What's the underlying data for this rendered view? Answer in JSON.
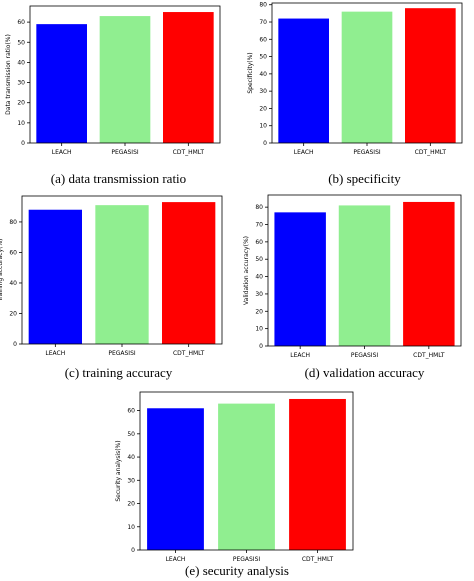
{
  "chart_data": [
    {
      "type": "bar",
      "caption": "(a) data transmission ratio",
      "ylabel": "Data transmission ratio(%)",
      "xlabel": "",
      "categories": [
        "LEACH",
        "PEGASISI",
        "CDT_HMLT"
      ],
      "values": [
        59,
        63,
        65
      ],
      "colors": [
        "#0000ff",
        "#90ee90",
        "#ff0000"
      ],
      "ylim": [
        0,
        68
      ],
      "yticks": [
        0,
        10,
        20,
        30,
        40,
        50,
        60
      ]
    },
    {
      "type": "bar",
      "caption": "(b) specificity",
      "ylabel": "Specificity(%)",
      "xlabel": "",
      "categories": [
        "LEACH",
        "PEGASISI",
        "CDT_HMLT"
      ],
      "values": [
        72,
        76,
        78
      ],
      "colors": [
        "#0000ff",
        "#90ee90",
        "#ff0000"
      ],
      "ylim": [
        0,
        81
      ],
      "yticks": [
        0,
        10,
        20,
        30,
        40,
        50,
        60,
        70,
        80
      ]
    },
    {
      "type": "bar",
      "caption": "(c) training accuracy",
      "ylabel": "Training accuracy(%)",
      "xlabel": "",
      "categories": [
        "LEACH",
        "PEGASISI",
        "CDT_HMLT"
      ],
      "values": [
        88,
        91,
        93
      ],
      "colors": [
        "#0000ff",
        "#90ee90",
        "#ff0000"
      ],
      "ylim": [
        0,
        97
      ],
      "yticks": [
        0,
        20,
        40,
        60,
        80
      ]
    },
    {
      "type": "bar",
      "caption": "(d) validation accuracy",
      "ylabel": "Validation accuracy(%)",
      "xlabel": "",
      "categories": [
        "LEACH",
        "PEGASISI",
        "CDT_HMLT"
      ],
      "values": [
        77,
        81,
        83
      ],
      "colors": [
        "#0000ff",
        "#90ee90",
        "#ff0000"
      ],
      "ylim": [
        0,
        87
      ],
      "yticks": [
        0,
        10,
        20,
        30,
        40,
        50,
        60,
        70,
        80
      ]
    },
    {
      "type": "bar",
      "caption": "(e) security analysis",
      "ylabel": "Security analysis(%)",
      "xlabel": "",
      "categories": [
        "LEACH",
        "PEGASISI",
        "CDT_HMLT"
      ],
      "values": [
        61,
        63,
        65
      ],
      "colors": [
        "#0000ff",
        "#90ee90",
        "#ff0000"
      ],
      "ylim": [
        0,
        68
      ],
      "yticks": [
        0,
        10,
        20,
        30,
        40,
        50,
        60
      ]
    }
  ]
}
